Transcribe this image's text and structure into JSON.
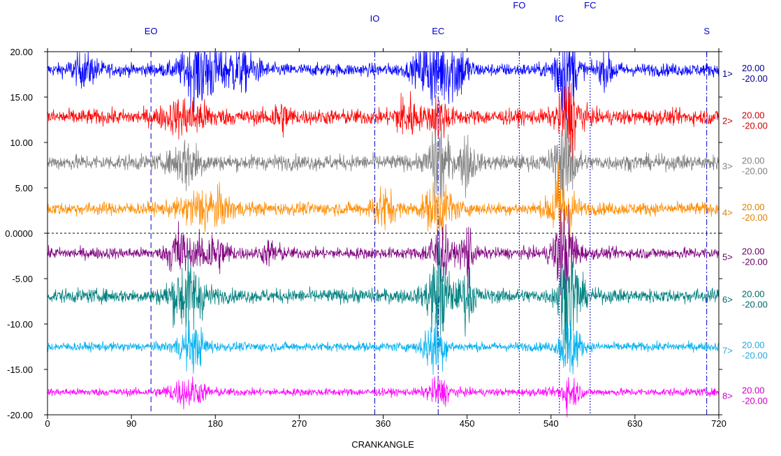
{
  "chart_data": {
    "type": "line",
    "title": "",
    "xlabel": "CRANKANGLE",
    "ylabel": "",
    "xlim": [
      0,
      720
    ],
    "ylim": [
      -20,
      20
    ],
    "x_ticks": [
      0,
      90,
      180,
      270,
      360,
      450,
      540,
      630,
      720
    ],
    "y_ticks": [
      20,
      15,
      10,
      5,
      0,
      -5,
      -10,
      -15,
      -20
    ],
    "y_tick_labels": [
      "20.00",
      "15.00",
      "10.00",
      "5.00",
      "0.0000",
      "-5.00",
      "-10.00",
      "-15.00",
      "-20.00"
    ],
    "zero_line": "dashed",
    "events": [
      {
        "label": "EO",
        "x": 111,
        "style": "dashed",
        "row": 3
      },
      {
        "label": "IO",
        "x": 351,
        "style": "dashdot",
        "row": 2
      },
      {
        "label": "EC",
        "x": 419,
        "style": "dashdot",
        "row": 3
      },
      {
        "label": "FO",
        "x": 506,
        "style": "dotted",
        "row": 1
      },
      {
        "label": "IC",
        "x": 549,
        "style": "dotted",
        "row": 2
      },
      {
        "label": "FC",
        "x": 582,
        "style": "dotted",
        "row": 1
      },
      {
        "label": "S",
        "x": 707,
        "style": "dashdot",
        "row": 3
      }
    ],
    "event_color": "#0000cc",
    "series": [
      {
        "name": "1>",
        "scale_max": "20.00",
        "scale_min": "-20.00",
        "color": "#0000ff",
        "label_color": "#00008b",
        "baseline": 18,
        "noise": 0.5,
        "bursts": [
          [
            40,
            15,
            1
          ],
          [
            165,
            20,
            2.6
          ],
          [
            205,
            20,
            1.5
          ],
          [
            415,
            18,
            2.6
          ],
          [
            440,
            12,
            1.8
          ],
          [
            555,
            12,
            3.5
          ],
          [
            600,
            10,
            1
          ]
        ]
      },
      {
        "name": "2>",
        "scale_max": "20.00",
        "scale_min": "-20.00",
        "color": "#ff0000",
        "label_color": "#cc0000",
        "baseline": 12.8,
        "noise": 0.6,
        "bursts": [
          [
            150,
            25,
            1.2
          ],
          [
            250,
            10,
            1
          ],
          [
            385,
            12,
            1.6
          ],
          [
            420,
            10,
            1.5
          ],
          [
            560,
            12,
            2.6
          ]
        ]
      },
      {
        "name": "3>",
        "scale_max": "20.00",
        "scale_min": "-20.00",
        "color": "#808080",
        "label_color": "#808080",
        "baseline": 7.8,
        "noise": 0.6,
        "bursts": [
          [
            150,
            15,
            1.8
          ],
          [
            420,
            10,
            3.6
          ],
          [
            450,
            8,
            2
          ],
          [
            555,
            12,
            3
          ]
        ]
      },
      {
        "name": "4>",
        "scale_max": "20.00",
        "scale_min": "-20.00",
        "color": "#ff8c00",
        "label_color": "#e08000",
        "baseline": 2.7,
        "noise": 0.5,
        "bursts": [
          [
            170,
            25,
            1.5
          ],
          [
            360,
            12,
            1.5
          ],
          [
            420,
            15,
            2
          ],
          [
            552,
            12,
            3.5
          ]
        ]
      },
      {
        "name": "5>",
        "scale_max": "20.00",
        "scale_min": "-20.00",
        "color": "#800080",
        "label_color": "#660066",
        "baseline": -2.2,
        "noise": 0.45,
        "bursts": [
          [
            140,
            10,
            2.2
          ],
          [
            175,
            18,
            1.5
          ],
          [
            240,
            10,
            0.8
          ],
          [
            420,
            12,
            2
          ],
          [
            450,
            6,
            2.6
          ],
          [
            555,
            12,
            3.6
          ]
        ]
      },
      {
        "name": "6>",
        "scale_max": "20.00",
        "scale_min": "-20.00",
        "color": "#008080",
        "label_color": "#006666",
        "baseline": -6.9,
        "noise": 0.55,
        "bursts": [
          [
            150,
            18,
            2.6
          ],
          [
            420,
            12,
            3.6
          ],
          [
            450,
            8,
            2
          ],
          [
            560,
            12,
            3.6
          ]
        ]
      },
      {
        "name": "7>",
        "scale_max": "20.00",
        "scale_min": "-20.00",
        "color": "#00b0f0",
        "label_color": "#22aadd",
        "baseline": -12.5,
        "noise": 0.35,
        "bursts": [
          [
            155,
            15,
            1.6
          ],
          [
            415,
            12,
            2.2
          ],
          [
            560,
            10,
            2.6
          ]
        ]
      },
      {
        "name": "8>",
        "scale_max": "20.00",
        "scale_min": "-20.00",
        "color": "#ff00ff",
        "label_color": "#cc00cc",
        "baseline": -17.5,
        "noise": 0.3,
        "bursts": [
          [
            150,
            20,
            1
          ],
          [
            420,
            12,
            1
          ],
          [
            560,
            10,
            1.3
          ]
        ]
      }
    ]
  }
}
